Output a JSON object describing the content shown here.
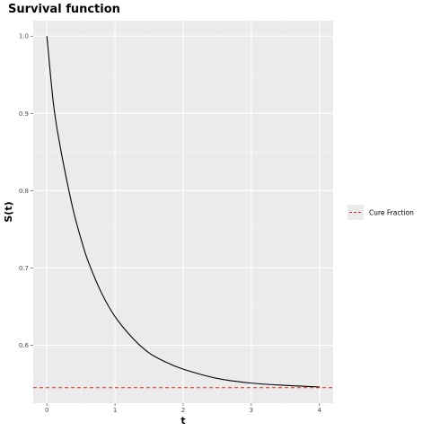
{
  "chart_data": {
    "type": "line",
    "title": "Survival function",
    "xlabel": "t",
    "ylabel": "S(t)",
    "xlim": [
      -0.2,
      4.2
    ],
    "ylim": [
      0.525,
      1.02
    ],
    "x_ticks": [
      0,
      1,
      2,
      3,
      4
    ],
    "x_tick_labels": [
      "0",
      "1",
      "2",
      "3",
      "4"
    ],
    "y_ticks": [
      0.6,
      0.7,
      0.8,
      0.9,
      1.0
    ],
    "y_tick_labels": [
      "0.6",
      "0.7",
      "0.8",
      "0.9",
      "1.0"
    ],
    "grid": true,
    "legend_position": "right",
    "series": [
      {
        "color": "#000000",
        "style": "solid",
        "x": [
          0,
          0.1,
          0.2,
          0.3,
          0.4,
          0.5,
          0.6,
          0.8,
          1.0,
          1.25,
          1.5,
          1.75,
          2.0,
          2.5,
          3.0,
          3.5,
          4.0
        ],
        "y": [
          1.0,
          0.91,
          0.855,
          0.81,
          0.77,
          0.738,
          0.71,
          0.668,
          0.637,
          0.61,
          0.59,
          0.578,
          0.569,
          0.557,
          0.551,
          0.548,
          0.546
        ]
      }
    ],
    "reference_lines": [
      {
        "name": "Cure Fraction",
        "y": 0.545,
        "color": "#d62d20",
        "style": "dashed"
      }
    ]
  }
}
